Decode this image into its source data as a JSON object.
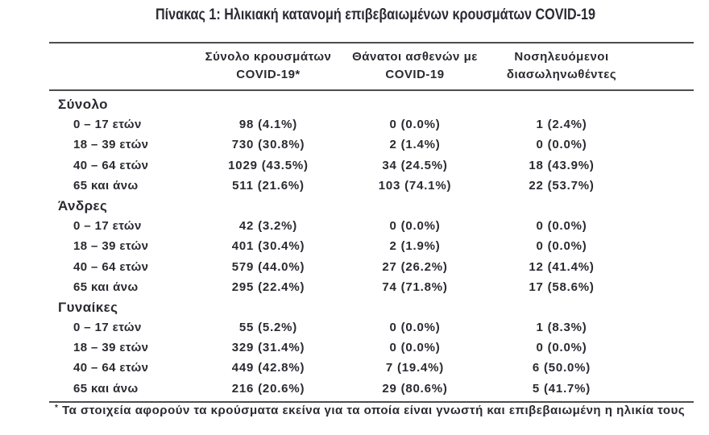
{
  "title": "Πίνακας 1: Ηλικιακή κατανομή επιβεβαιωμένων κρουσμάτων COVID-19",
  "colors": {
    "text": "#2a2a31",
    "rule": "#4d4d4d",
    "background": "#ffffff"
  },
  "table": {
    "columns": [
      {
        "label": "Σύνολο κρουσμάτων\nCOVID-19*"
      },
      {
        "label": "Θάνατοι ασθενών με\nCOVID-19"
      },
      {
        "label": "Νοσηλευόμενοι\nδιασωληνωθέντες"
      }
    ],
    "sections": [
      {
        "label": "Σύνολο",
        "rows": [
          {
            "label": "0 – 17 ετών",
            "cases": "98 (4.1%)",
            "deaths": "0 (0.0%)",
            "intubated": "1 (2.4%)"
          },
          {
            "label": "18 – 39 ετών",
            "cases": "730 (30.8%)",
            "deaths": "2 (1.4%)",
            "intubated": "0 (0.0%)"
          },
          {
            "label": "40 – 64 ετών",
            "cases": "1029 (43.5%)",
            "deaths": "34 (24.5%)",
            "intubated": "18 (43.9%)"
          },
          {
            "label": "65 και άνω",
            "cases": "511 (21.6%)",
            "deaths": "103 (74.1%)",
            "intubated": "22 (53.7%)"
          }
        ]
      },
      {
        "label": "Άνδρες",
        "rows": [
          {
            "label": "0 – 17 ετών",
            "cases": "42 (3.2%)",
            "deaths": "0 (0.0%)",
            "intubated": "0 (0.0%)"
          },
          {
            "label": "18 – 39 ετών",
            "cases": "401 (30.4%)",
            "deaths": "2 (1.9%)",
            "intubated": "0 (0.0%)"
          },
          {
            "label": "40 – 64 ετών",
            "cases": "579 (44.0%)",
            "deaths": "27 (26.2%)",
            "intubated": "12 (41.4%)"
          },
          {
            "label": "65 και άνω",
            "cases": "295 (22.4%)",
            "deaths": "74 (71.8%)",
            "intubated": "17 (58.6%)"
          }
        ]
      },
      {
        "label": "Γυναίκες",
        "rows": [
          {
            "label": "0 – 17 ετών",
            "cases": "55 (5.2%)",
            "deaths": "0 (0.0%)",
            "intubated": "1 (8.3%)"
          },
          {
            "label": "18 – 39 ετών",
            "cases": "329 (31.4%)",
            "deaths": "0 (0.0%)",
            "intubated": "0 (0.0%)"
          },
          {
            "label": "40 – 64 ετών",
            "cases": "449 (42.8%)",
            "deaths": "7 (19.4%)",
            "intubated": "6 (50.0%)"
          },
          {
            "label": "65 και άνω",
            "cases": "216 (20.6%)",
            "deaths": "29 (80.6%)",
            "intubated": "5 (41.7%)"
          }
        ]
      }
    ]
  },
  "footnote": {
    "marker": "*",
    "text": " Τα στοιχεία αφορούν τα κρούσματα εκείνα για τα οποία είναι γνωστή και επιβεβαιωμένη η ηλικία τους"
  }
}
